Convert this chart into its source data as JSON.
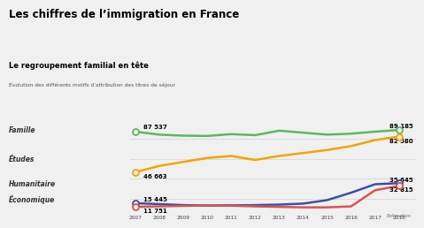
{
  "title": "Les chiffres de l’immigration en France",
  "subtitle": "Le regroupement familial en tête",
  "subtitle2": "Évolution des différents motifs d’attribution des titres de séjour",
  "years": [
    2007,
    2008,
    2009,
    2010,
    2011,
    2012,
    2013,
    2014,
    2015,
    2016,
    2017,
    2018
  ],
  "famille": [
    87537,
    84500,
    83500,
    83200,
    85000,
    84000,
    88500,
    86500,
    84500,
    85500,
    87500,
    89185
  ],
  "etudes": [
    46663,
    53000,
    57000,
    61000,
    63000,
    59000,
    63000,
    66000,
    69000,
    73000,
    79000,
    82580
  ],
  "humanitaire": [
    15445,
    14500,
    13500,
    13000,
    13200,
    13500,
    14000,
    15000,
    18500,
    26000,
    34500,
    35645
  ],
  "economique": [
    11751,
    12200,
    12700,
    13200,
    12900,
    12200,
    11700,
    11200,
    11200,
    12200,
    28500,
    32815
  ],
  "famille_color": "#5cb85c",
  "etudes_color": "#f0a500",
  "humanitaire_color": "#3a4fa8",
  "economique_color": "#d9534f",
  "bg_color": "#f0f0f0",
  "text_color": "#222222",
  "label_famille": "Famille",
  "label_etudes": "Études",
  "label_humanitaire": "Humanitaire",
  "label_economique": "Économique",
  "ann07_famille": "87 537",
  "ann07_etudes": "46 663",
  "ann07_humanitaire": "15 445",
  "ann07_economique": "11 751",
  "ann18_famille": "89 185",
  "ann18_etudes": "82 580",
  "ann18_humanitaire": "35 645",
  "ann18_economique": "32 815",
  "estimation_label": "Estimation"
}
